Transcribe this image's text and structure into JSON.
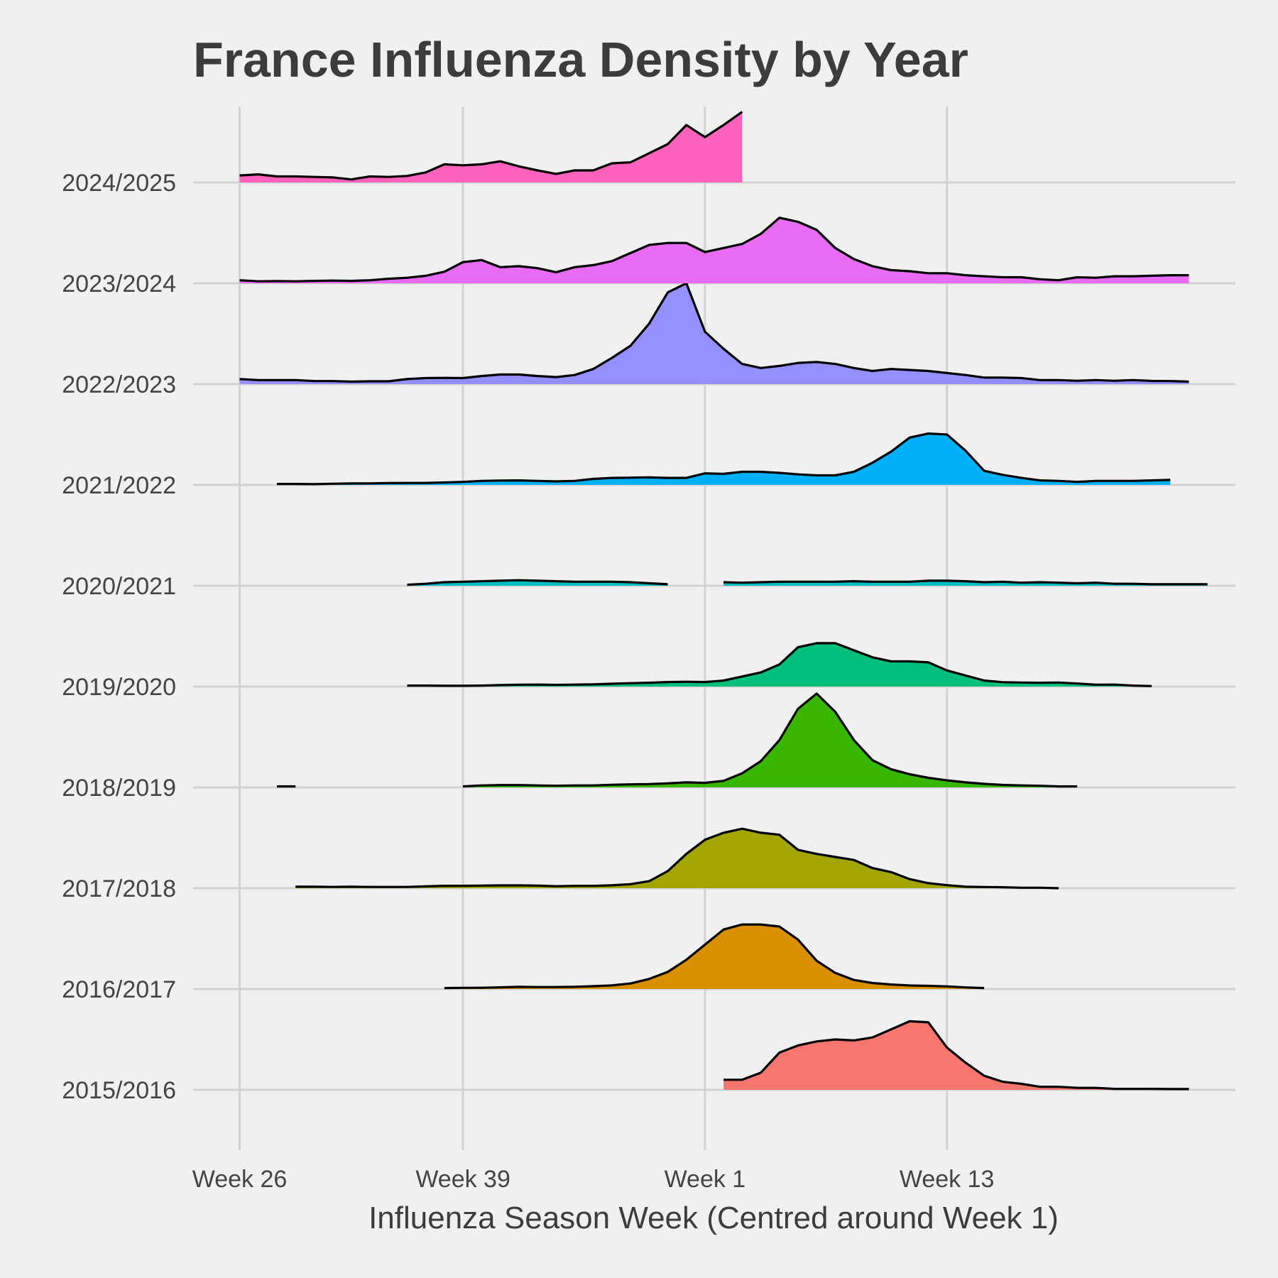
{
  "chart_data": {
    "type": "area",
    "title": "France Influenza Density by Year",
    "xlabel": "Influenza Season Week (Centred around Week 1)",
    "ylabel": "",
    "x_ticks": [
      {
        "label": "Week 26",
        "value": 0
      },
      {
        "label": "Week 39",
        "value": 12
      },
      {
        "label": "Week 1",
        "value": 25
      },
      {
        "label": "Week 13",
        "value": 38
      }
    ],
    "xlim": [
      -2.5,
      53.5
    ],
    "x_unit": "season week index (0 = Week 26)",
    "y_unit": "relative influenza density",
    "ridge_scale": 2.0,
    "categories": [
      "2015/2016",
      "2016/2017",
      "2017/2018",
      "2018/2019",
      "2019/2020",
      "2020/2021",
      "2021/2022",
      "2022/2023",
      "2023/2024",
      "2024/2025"
    ],
    "series": [
      {
        "name": "2015/2016",
        "color": "#f8766d",
        "segments": [
          {
            "x0": 26,
            "values": [
              0.1,
              0.1,
              0.17,
              0.37,
              0.44,
              0.48,
              0.5,
              0.49,
              0.52,
              0.6,
              0.68,
              0.67,
              0.42,
              0.27,
              0.14,
              0.08,
              0.06,
              0.03,
              0.03,
              0.02,
              0.02,
              0.01,
              0.01,
              0.01,
              0.008,
              0.008
            ]
          }
        ]
      },
      {
        "name": "2016/2017",
        "color": "#d89000",
        "segments": [
          {
            "x0": 11,
            "values": [
              0.01,
              0.012,
              0.013,
              0.017,
              0.022,
              0.02,
              0.02,
              0.022,
              0.028,
              0.036,
              0.055,
              0.1,
              0.17,
              0.29,
              0.44,
              0.59,
              0.64,
              0.64,
              0.62,
              0.49,
              0.28,
              0.16,
              0.09,
              0.06,
              0.045,
              0.035,
              0.032,
              0.026,
              0.016,
              0.01
            ]
          }
        ]
      },
      {
        "name": "2017/2018",
        "color": "#a3a500",
        "segments": [
          {
            "x0": 3,
            "values": [
              0.015,
              0.015,
              0.013,
              0.015,
              0.013,
              0.013,
              0.013,
              0.018,
              0.024,
              0.024,
              0.026,
              0.028,
              0.028,
              0.026,
              0.02,
              0.023,
              0.023,
              0.029,
              0.04,
              0.07,
              0.17,
              0.34,
              0.48,
              0.55,
              0.59,
              0.55,
              0.53,
              0.38,
              0.34,
              0.31,
              0.28,
              0.2,
              0.16,
              0.09,
              0.05,
              0.03,
              0.015,
              0.012,
              0.01,
              0.005,
              0.005,
              0.0
            ]
          }
        ]
      },
      {
        "name": "2018/2019",
        "color": "#39b600",
        "segments": [
          {
            "x0": 2,
            "values": [
              0.01,
              0.01
            ]
          },
          {
            "x0": 12,
            "values": [
              0.01,
              0.02,
              0.023,
              0.023,
              0.02,
              0.016,
              0.02,
              0.02,
              0.026,
              0.03,
              0.033,
              0.04,
              0.05,
              0.045,
              0.065,
              0.14,
              0.26,
              0.47,
              0.78,
              0.93,
              0.75,
              0.47,
              0.27,
              0.18,
              0.13,
              0.095,
              0.07,
              0.05,
              0.035,
              0.025,
              0.02,
              0.016,
              0.01,
              0.01
            ]
          }
        ]
      },
      {
        "name": "2019/2020",
        "color": "#00bf7d",
        "segments": [
          {
            "x0": 9,
            "values": [
              0.01,
              0.01,
              0.008,
              0.008,
              0.01,
              0.015,
              0.018,
              0.02,
              0.017,
              0.02,
              0.022,
              0.028,
              0.034,
              0.038,
              0.045,
              0.048,
              0.045,
              0.06,
              0.1,
              0.14,
              0.22,
              0.39,
              0.43,
              0.43,
              0.36,
              0.29,
              0.25,
              0.25,
              0.24,
              0.16,
              0.11,
              0.06,
              0.044,
              0.04,
              0.038,
              0.04,
              0.03,
              0.018,
              0.02,
              0.01,
              0.005
            ]
          }
        ]
      },
      {
        "name": "2020/2021",
        "color": "#00bfc4",
        "segments": [
          {
            "x0": 9,
            "values": [
              0.01,
              0.02,
              0.035,
              0.04,
              0.045,
              0.05,
              0.055,
              0.05,
              0.045,
              0.04,
              0.04,
              0.04,
              0.035,
              0.025,
              0.015
            ]
          },
          {
            "x0": 26,
            "values": [
              0.035,
              0.03,
              0.035,
              0.04,
              0.04,
              0.04,
              0.04,
              0.045,
              0.04,
              0.04,
              0.04,
              0.05,
              0.05,
              0.045,
              0.035,
              0.04,
              0.03,
              0.035,
              0.03,
              0.025,
              0.03,
              0.02,
              0.02,
              0.015,
              0.015,
              0.015,
              0.015
            ]
          }
        ]
      },
      {
        "name": "2021/2022",
        "color": "#00b0f6",
        "segments": [
          {
            "x0": 2,
            "values": [
              0.01,
              0.01,
              0.008,
              0.012,
              0.015,
              0.015,
              0.018,
              0.02,
              0.02,
              0.025,
              0.03,
              0.04,
              0.044,
              0.045,
              0.04,
              0.035,
              0.04,
              0.06,
              0.07,
              0.072,
              0.075,
              0.07,
              0.07,
              0.115,
              0.11,
              0.13,
              0.13,
              0.12,
              0.105,
              0.095,
              0.095,
              0.13,
              0.22,
              0.33,
              0.47,
              0.51,
              0.5,
              0.34,
              0.14,
              0.1,
              0.07,
              0.045,
              0.04,
              0.03,
              0.04,
              0.04,
              0.04,
              0.045,
              0.05
            ]
          }
        ]
      },
      {
        "name": "2022/2023",
        "color": "#9590ff",
        "segments": [
          {
            "x0": 0,
            "values": [
              0.05,
              0.04,
              0.04,
              0.04,
              0.03,
              0.03,
              0.025,
              0.028,
              0.028,
              0.05,
              0.06,
              0.062,
              0.06,
              0.08,
              0.095,
              0.095,
              0.08,
              0.07,
              0.09,
              0.15,
              0.26,
              0.38,
              0.6,
              0.91,
              1.0,
              0.52,
              0.35,
              0.2,
              0.16,
              0.18,
              0.21,
              0.22,
              0.2,
              0.16,
              0.13,
              0.15,
              0.14,
              0.13,
              0.11,
              0.09,
              0.065,
              0.065,
              0.06,
              0.04,
              0.04,
              0.033,
              0.04,
              0.033,
              0.04,
              0.032,
              0.03,
              0.025
            ]
          }
        ]
      },
      {
        "name": "2023/2024",
        "color": "#e76bf3",
        "segments": [
          {
            "x0": 0,
            "values": [
              0.03,
              0.02,
              0.022,
              0.02,
              0.024,
              0.027,
              0.024,
              0.03,
              0.045,
              0.055,
              0.075,
              0.115,
              0.21,
              0.23,
              0.16,
              0.17,
              0.15,
              0.11,
              0.16,
              0.18,
              0.22,
              0.3,
              0.38,
              0.4,
              0.4,
              0.31,
              0.35,
              0.39,
              0.49,
              0.65,
              0.61,
              0.53,
              0.35,
              0.24,
              0.17,
              0.13,
              0.12,
              0.1,
              0.1,
              0.08,
              0.07,
              0.06,
              0.06,
              0.04,
              0.03,
              0.06,
              0.055,
              0.07,
              0.07,
              0.075,
              0.08,
              0.08
            ]
          }
        ]
      },
      {
        "name": "2024/2025",
        "color": "#ff62bc",
        "segments": [
          {
            "x0": 0,
            "values": [
              0.07,
              0.08,
              0.06,
              0.06,
              0.055,
              0.05,
              0.03,
              0.06,
              0.055,
              0.065,
              0.1,
              0.18,
              0.17,
              0.18,
              0.21,
              0.16,
              0.12,
              0.085,
              0.12,
              0.12,
              0.19,
              0.2,
              0.29,
              0.38,
              0.57,
              0.45,
              0.57,
              0.7
            ]
          }
        ]
      }
    ]
  }
}
